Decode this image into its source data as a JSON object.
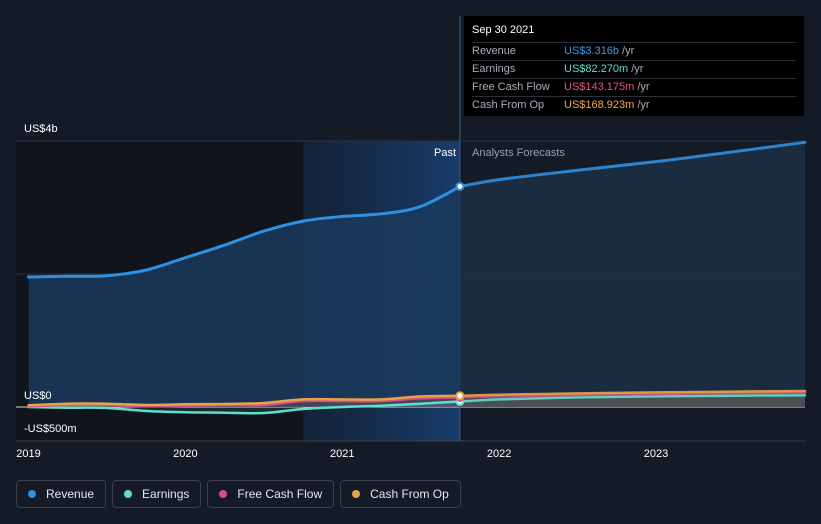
{
  "chart_data": {
    "type": "area",
    "x_range": [
      2018.92,
      2023.95
    ],
    "ylim": [
      -500,
      4000
    ],
    "y_tick_labels": [
      "US$4b",
      "US$0",
      "-US$500m"
    ],
    "x_ticks": [
      {
        "value": 2019,
        "label": "2019"
      },
      {
        "value": 2020,
        "label": "2020"
      },
      {
        "value": 2021,
        "label": "2021"
      },
      {
        "value": 2022,
        "label": "2022"
      },
      {
        "value": 2023,
        "label": "2023"
      }
    ],
    "past_label": "Past",
    "forecast_label": "Analysts Forecasts",
    "divider_x": 2021.75,
    "highlight_start": 2020.75,
    "series": [
      {
        "name": "Revenue",
        "color": "#2f8fe0",
        "past": [
          [
            2019.0,
            1955
          ],
          [
            2019.25,
            1965
          ],
          [
            2019.5,
            1975
          ],
          [
            2019.75,
            2060
          ],
          [
            2020.0,
            2245
          ],
          [
            2020.25,
            2435
          ],
          [
            2020.5,
            2645
          ],
          [
            2020.75,
            2795
          ],
          [
            2021.0,
            2865
          ],
          [
            2021.25,
            2905
          ],
          [
            2021.5,
            3015
          ],
          [
            2021.75,
            3316
          ]
        ],
        "forecast": [
          [
            2021.75,
            3316
          ],
          [
            2022.0,
            3420
          ],
          [
            2022.5,
            3560
          ],
          [
            2023.0,
            3690
          ],
          [
            2023.5,
            3840
          ],
          [
            2023.95,
            3980
          ]
        ]
      },
      {
        "name": "Earnings",
        "color": "#5ee0c8",
        "past": [
          [
            2019.0,
            0
          ],
          [
            2019.25,
            -10
          ],
          [
            2019.5,
            -15
          ],
          [
            2019.75,
            -60
          ],
          [
            2020.0,
            -80
          ],
          [
            2020.25,
            -85
          ],
          [
            2020.5,
            -90
          ],
          [
            2020.75,
            -30
          ],
          [
            2021.0,
            0
          ],
          [
            2021.25,
            20
          ],
          [
            2021.5,
            50
          ],
          [
            2021.75,
            82.27
          ]
        ],
        "forecast": [
          [
            2021.75,
            82.27
          ],
          [
            2022.0,
            115
          ],
          [
            2022.5,
            145
          ],
          [
            2023.0,
            160
          ],
          [
            2023.5,
            170
          ],
          [
            2023.95,
            175
          ]
        ]
      },
      {
        "name": "Free Cash Flow",
        "color": "#d64e8a",
        "past": [
          [
            2019.0,
            10
          ],
          [
            2019.25,
            30
          ],
          [
            2019.5,
            30
          ],
          [
            2019.75,
            10
          ],
          [
            2020.0,
            20
          ],
          [
            2020.25,
            30
          ],
          [
            2020.5,
            30
          ],
          [
            2020.75,
            90
          ],
          [
            2021.0,
            90
          ],
          [
            2021.25,
            90
          ],
          [
            2021.5,
            130
          ],
          [
            2021.75,
            143.175
          ]
        ],
        "forecast": [
          [
            2021.75,
            143.175
          ],
          [
            2022.0,
            160
          ],
          [
            2022.5,
            180
          ],
          [
            2023.0,
            195
          ],
          [
            2023.5,
            210
          ],
          [
            2023.95,
            215
          ]
        ]
      },
      {
        "name": "Cash From Op",
        "color": "#e8a34a",
        "past": [
          [
            2019.0,
            25
          ],
          [
            2019.25,
            50
          ],
          [
            2019.5,
            50
          ],
          [
            2019.75,
            30
          ],
          [
            2020.0,
            40
          ],
          [
            2020.25,
            45
          ],
          [
            2020.5,
            60
          ],
          [
            2020.75,
            115
          ],
          [
            2021.0,
            115
          ],
          [
            2021.25,
            115
          ],
          [
            2021.5,
            160
          ],
          [
            2021.75,
            168.923
          ]
        ],
        "forecast": [
          [
            2021.75,
            168.923
          ],
          [
            2022.0,
            185
          ],
          [
            2022.5,
            205
          ],
          [
            2023.0,
            220
          ],
          [
            2023.5,
            232
          ],
          [
            2023.95,
            240
          ]
        ]
      }
    ]
  },
  "tooltip": {
    "title": "Sep 30 2021",
    "rows": [
      {
        "label": "Revenue",
        "value": "US$3.316b",
        "unit": "/yr",
        "color": "#3a9be8"
      },
      {
        "label": "Earnings",
        "value": "US$82.270m",
        "unit": "/yr",
        "color": "#5ee0c8"
      },
      {
        "label": "Free Cash Flow",
        "value": "US$143.175m",
        "unit": "/yr",
        "color": "#e0558f"
      },
      {
        "label": "Cash From Op",
        "value": "US$168.923m",
        "unit": "/yr",
        "color": "#eea84f"
      }
    ]
  },
  "legend": [
    {
      "label": "Revenue",
      "color": "#2f8fe0"
    },
    {
      "label": "Earnings",
      "color": "#5ee0c8"
    },
    {
      "label": "Free Cash Flow",
      "color": "#d64e8a"
    },
    {
      "label": "Cash From Op",
      "color": "#e8a34a"
    }
  ]
}
